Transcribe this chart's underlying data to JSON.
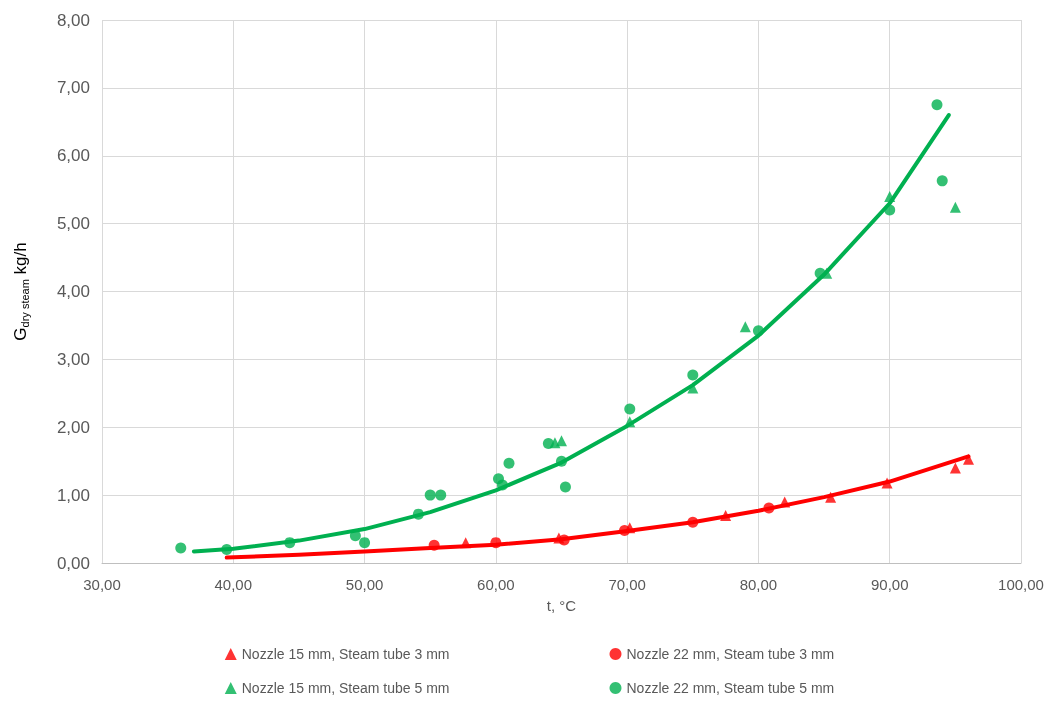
{
  "chart_data": {
    "type": "scatter",
    "xlabel": "t, °C",
    "ylabel": "G$_{dry steam}$ kg/h",
    "xlim": [
      30,
      100
    ],
    "xticks": [
      {
        "value": 30,
        "label": "30,00"
      },
      {
        "value": 40,
        "label": "40,00"
      },
      {
        "value": 50,
        "label": "50,00"
      },
      {
        "value": 60,
        "label": "60,00"
      },
      {
        "value": 70,
        "label": "70,00"
      },
      {
        "value": 80,
        "label": "80,00"
      },
      {
        "value": 90,
        "label": "90,00"
      },
      {
        "value": 100,
        "label": "100,00"
      }
    ],
    "ylim": [
      0,
      8
    ],
    "yticks": [
      {
        "value": 0,
        "label": "0,00"
      },
      {
        "value": 1,
        "label": "1,00"
      },
      {
        "value": 2,
        "label": "2,00"
      },
      {
        "value": 3,
        "label": "3,00"
      },
      {
        "value": 4,
        "label": "4,00"
      },
      {
        "value": 5,
        "label": "5,00"
      },
      {
        "value": 6,
        "label": "6,00"
      },
      {
        "value": 7,
        "label": "7,00"
      },
      {
        "value": 8,
        "label": "8,00"
      }
    ],
    "grid": true,
    "legend": "bottom",
    "series": [
      {
        "name": "Nozzle 15 mm, Steam tube 3 mm",
        "color": "#ff0000",
        "marker": "triangle",
        "x": [
          57.7,
          64.8,
          70.2,
          77.5,
          82,
          85.5,
          89.8,
          95,
          96
        ],
        "values": [
          0.3,
          0.37,
          0.52,
          0.7,
          0.9,
          0.97,
          1.18,
          1.4,
          1.53
        ]
      },
      {
        "name": "Nozzle 22 mm, Steam tube 3 mm",
        "color": "#ff0000",
        "marker": "circle",
        "x": [
          55.3,
          60,
          65.2,
          69.8,
          75,
          80.8
        ],
        "values": [
          0.26,
          0.3,
          0.34,
          0.48,
          0.6,
          0.81
        ]
      },
      {
        "name": "Nozzle 15 mm, Steam tube 5 mm",
        "color": "#00b050",
        "marker": "triangle",
        "x": [
          64.5,
          65,
          70.2,
          75,
          79,
          85.2,
          90,
          95
        ],
        "values": [
          1.77,
          1.8,
          2.08,
          2.58,
          3.48,
          4.27,
          5.4,
          5.24
        ]
      },
      {
        "name": "Nozzle 22 mm, Steam tube 5 mm",
        "color": "#00b050",
        "marker": "circle",
        "x": [
          36,
          39.5,
          44.3,
          49.3,
          50,
          54.1,
          55,
          55.8,
          60.2,
          60.5,
          61,
          64,
          65,
          65.3,
          70.2,
          75,
          80,
          84.7,
          90,
          93.6,
          94
        ],
        "values": [
          0.22,
          0.2,
          0.3,
          0.4,
          0.3,
          0.72,
          1.0,
          1.0,
          1.24,
          1.15,
          1.47,
          1.76,
          1.5,
          1.12,
          2.27,
          2.77,
          3.42,
          4.27,
          5.2,
          6.75,
          5.63
        ]
      },
      {
        "type": "line",
        "color": "#ff0000",
        "marker": "none",
        "line_style": "solid",
        "x": [
          39.5,
          45,
          50,
          55,
          60,
          65,
          70,
          75,
          80,
          85,
          90,
          96
        ],
        "values": [
          0.08,
          0.12,
          0.17,
          0.22,
          0.27,
          0.35,
          0.47,
          0.6,
          0.77,
          0.97,
          1.2,
          1.57
        ]
      },
      {
        "type": "line",
        "color": "#00b050",
        "marker": "none",
        "line_style": "solid",
        "x": [
          37,
          40,
          45,
          50,
          55,
          60,
          65,
          70,
          75,
          80,
          85,
          90,
          94.5
        ],
        "values": [
          0.17,
          0.21,
          0.33,
          0.5,
          0.75,
          1.07,
          1.48,
          2.02,
          2.62,
          3.35,
          4.25,
          5.3,
          6.6
        ]
      }
    ]
  }
}
